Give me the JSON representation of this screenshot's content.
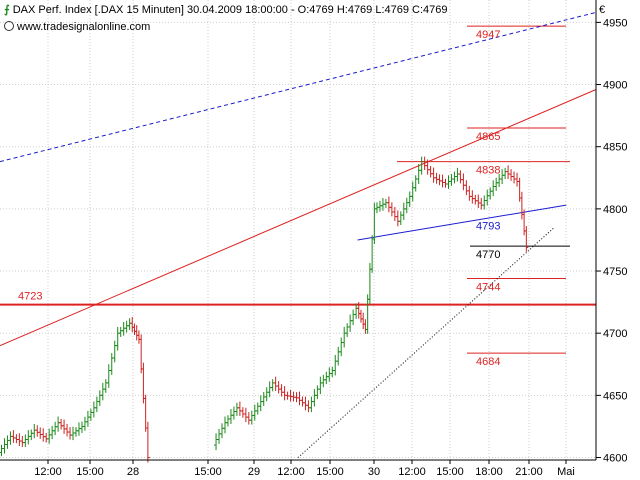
{
  "header": {
    "title_line": "DAX Perf. Index [.DAX  15 Minuten] 30.04.2009 18:00:00 - O:4769 H:4769 L:4769 C:4769",
    "source": "www.tradesignalonline.com",
    "currency": "€"
  },
  "chart_data": {
    "type": "bar",
    "title": "DAX Perf. Index [.DAX  15 Minuten]",
    "ylim": [
      4598,
      4968
    ],
    "y_ticks": [
      4600,
      4650,
      4700,
      4750,
      4800,
      4850,
      4900,
      4950
    ],
    "x_ticks": [
      "12:00",
      "15:00",
      "28",
      "15:00",
      "29",
      "12:00",
      "15:00",
      "30",
      "12:00",
      "15:00",
      "18:00",
      "21:00",
      "Mai"
    ],
    "grid": true,
    "horizontal_levels": [
      {
        "label": "4947",
        "value": 4947,
        "color": "#dd2222"
      },
      {
        "label": "4865",
        "value": 4865,
        "color": "#dd2222"
      },
      {
        "label": "4838",
        "value": 4838,
        "color": "#dd2222"
      },
      {
        "label": "4793",
        "value": 4793,
        "color": "#1a1ad0"
      },
      {
        "label": "4770",
        "value": 4770,
        "color": "#000000"
      },
      {
        "label": "4744",
        "value": 4744,
        "color": "#dd2222"
      },
      {
        "label": "4723",
        "value": 4723,
        "color": "#dd2222"
      },
      {
        "label": "4684",
        "value": 4684,
        "color": "#dd2222"
      }
    ],
    "trendlines": [
      {
        "name": "channel-top",
        "style": "dashed",
        "color": "#1a1ad0",
        "from": [
          0,
          4838
        ],
        "to": [
          10,
          4958
        ]
      },
      {
        "name": "channel-mid",
        "style": "solid",
        "color": "#dd2222",
        "from": [
          0,
          4690
        ],
        "to": [
          10,
          4896
        ]
      },
      {
        "name": "support",
        "style": "solid",
        "color": "#1a1ad0",
        "from": [
          6,
          4775
        ],
        "to": [
          9.5,
          4803
        ]
      },
      {
        "name": "lower-trend",
        "style": "dotted",
        "color": "#000000",
        "from": [
          5,
          4600
        ],
        "to": [
          9.3,
          4785
        ]
      }
    ],
    "price_path": [
      [
        0.0,
        4604
      ],
      [
        0.2,
        4617
      ],
      [
        0.4,
        4612
      ],
      [
        0.6,
        4622
      ],
      [
        0.8,
        4615
      ],
      [
        1.0,
        4628
      ],
      [
        1.2,
        4618
      ],
      [
        1.4,
        4625
      ],
      [
        1.6,
        4640
      ],
      [
        1.8,
        4660
      ],
      [
        2.0,
        4700
      ],
      [
        2.2,
        4708
      ],
      [
        2.35,
        4695
      ],
      [
        2.5,
        4600
      ],
      [
        3.6,
        4610
      ],
      [
        3.8,
        4628
      ],
      [
        4.0,
        4640
      ],
      [
        4.2,
        4630
      ],
      [
        4.4,
        4645
      ],
      [
        4.6,
        4660
      ],
      [
        4.8,
        4650
      ],
      [
        5.0,
        4648
      ],
      [
        5.2,
        4640
      ],
      [
        5.4,
        4660
      ],
      [
        5.6,
        4670
      ],
      [
        5.8,
        4700
      ],
      [
        6.0,
        4720
      ],
      [
        6.15,
        4703
      ],
      [
        6.3,
        4800
      ],
      [
        6.5,
        4805
      ],
      [
        6.7,
        4790
      ],
      [
        6.9,
        4810
      ],
      [
        7.1,
        4838
      ],
      [
        7.3,
        4825
      ],
      [
        7.5,
        4820
      ],
      [
        7.7,
        4828
      ],
      [
        7.9,
        4810
      ],
      [
        8.1,
        4803
      ],
      [
        8.3,
        4818
      ],
      [
        8.5,
        4830
      ],
      [
        8.7,
        4822
      ],
      [
        8.85,
        4769
      ]
    ]
  }
}
